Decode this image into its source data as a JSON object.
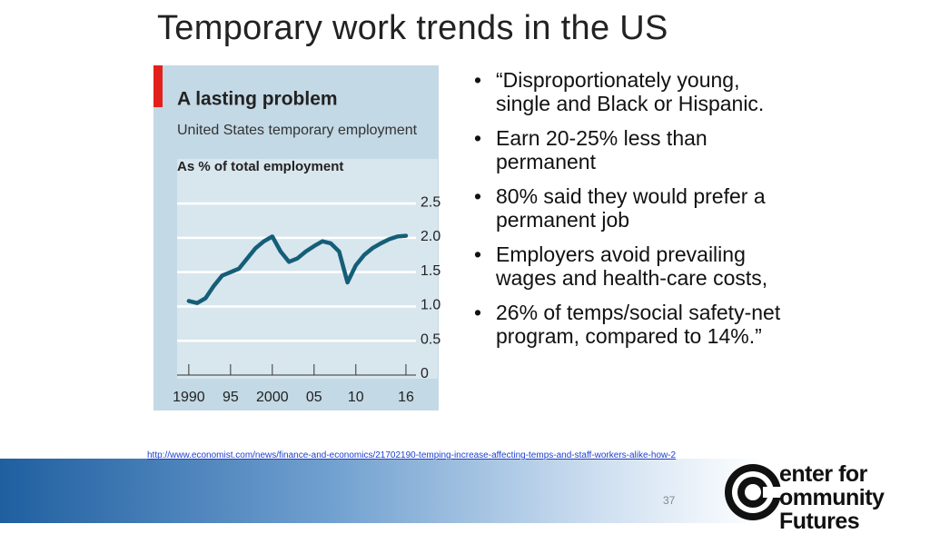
{
  "title": "Temporary work trends in the US",
  "bullets": [
    "“Disproportionately young, single and Black or Hispanic.",
    "Earn 20-25% less than permanent",
    "80% said they would prefer a permanent job",
    "Employers avoid prevailing wages and health-care costs,",
    "26% of temps/social safety-net program, compared to 14%.”"
  ],
  "link": "http://www.economist.com/news/finance-and-economics/21702190-temping-increase-affecting-temps-and-staff-workers-alike-how-2",
  "page_number": "37",
  "logo": [
    "enter for",
    "ommunity Futures"
  ],
  "chart_data": {
    "type": "line",
    "title": "A lasting problem",
    "subtitle": "United States temporary employment",
    "y_label": "As % of total employment",
    "x": [
      1990,
      1991,
      1992,
      1993,
      1994,
      1995,
      1996,
      1997,
      1998,
      1999,
      2000,
      2001,
      2002,
      2003,
      2004,
      2005,
      2006,
      2007,
      2008,
      2009,
      2010,
      2011,
      2012,
      2013,
      2014,
      2015,
      2016
    ],
    "series": [
      {
        "name": "Temporary employment",
        "color": "#155e78",
        "values": [
          1.08,
          1.05,
          1.12,
          1.3,
          1.45,
          1.5,
          1.55,
          1.7,
          1.85,
          1.95,
          2.02,
          1.8,
          1.65,
          1.7,
          1.8,
          1.88,
          1.95,
          1.92,
          1.8,
          1.35,
          1.6,
          1.75,
          1.85,
          1.92,
          1.98,
          2.02,
          2.03
        ]
      }
    ],
    "xlim": [
      1988.6,
      2017.2
    ],
    "xticks": [
      1990,
      {
        "value": 1995,
        "label": "95"
      },
      2000,
      {
        "value": 2005,
        "label": "05"
      },
      {
        "value": 2010,
        "label": "10"
      },
      {
        "value": 2016,
        "label": "16"
      }
    ],
    "ylim": [
      0,
      3.15
    ],
    "yticks": [
      0,
      0.5,
      {
        "value": 1,
        "label": "1.0"
      },
      1.5,
      {
        "value": 2,
        "label": "2.0"
      },
      2.5
    ],
    "grid": true
  }
}
